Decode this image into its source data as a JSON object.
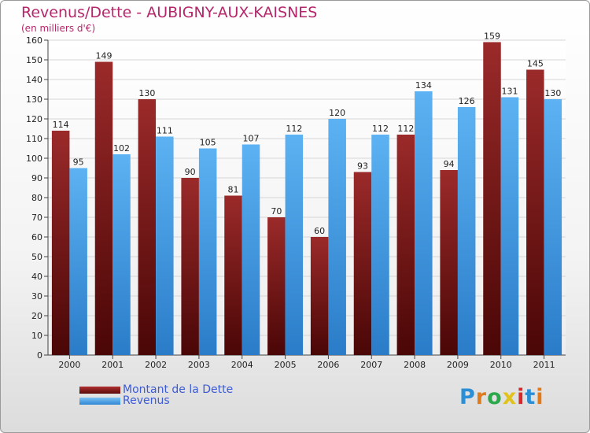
{
  "chart_data": {
    "type": "bar",
    "title": "Revenus/Dette - AUBIGNY-AUX-KAISNES",
    "subtitle": "(en milliers d'€)",
    "categories": [
      "2000",
      "2001",
      "2002",
      "2003",
      "2004",
      "2005",
      "2006",
      "2007",
      "2008",
      "2009",
      "2010",
      "2011"
    ],
    "series": [
      {
        "name": "Montant de la Dette",
        "color": "#7a1414",
        "values": [
          114,
          149,
          130,
          90,
          81,
          70,
          60,
          93,
          112,
          94,
          159,
          145
        ]
      },
      {
        "name": "Revenus",
        "color": "#4da3ea",
        "values": [
          95,
          102,
          111,
          105,
          107,
          112,
          120,
          112,
          134,
          126,
          131,
          130
        ]
      }
    ],
    "ylim": [
      0,
      160
    ],
    "yticks": [
      0,
      10,
      20,
      30,
      40,
      50,
      60,
      70,
      80,
      90,
      100,
      110,
      120,
      130,
      140,
      150,
      160
    ],
    "grid": true,
    "legend": "bottom-left"
  },
  "logo": {
    "text": "Proxiti",
    "letters": [
      "P",
      "r",
      "o",
      "x",
      "i",
      "t",
      "i"
    ],
    "colors": [
      "#2a8fd6",
      "#e07b1c",
      "#2aa84a",
      "#e0c21c",
      "#d62a2a",
      "#2a8fd6",
      "#e07b1c"
    ]
  }
}
